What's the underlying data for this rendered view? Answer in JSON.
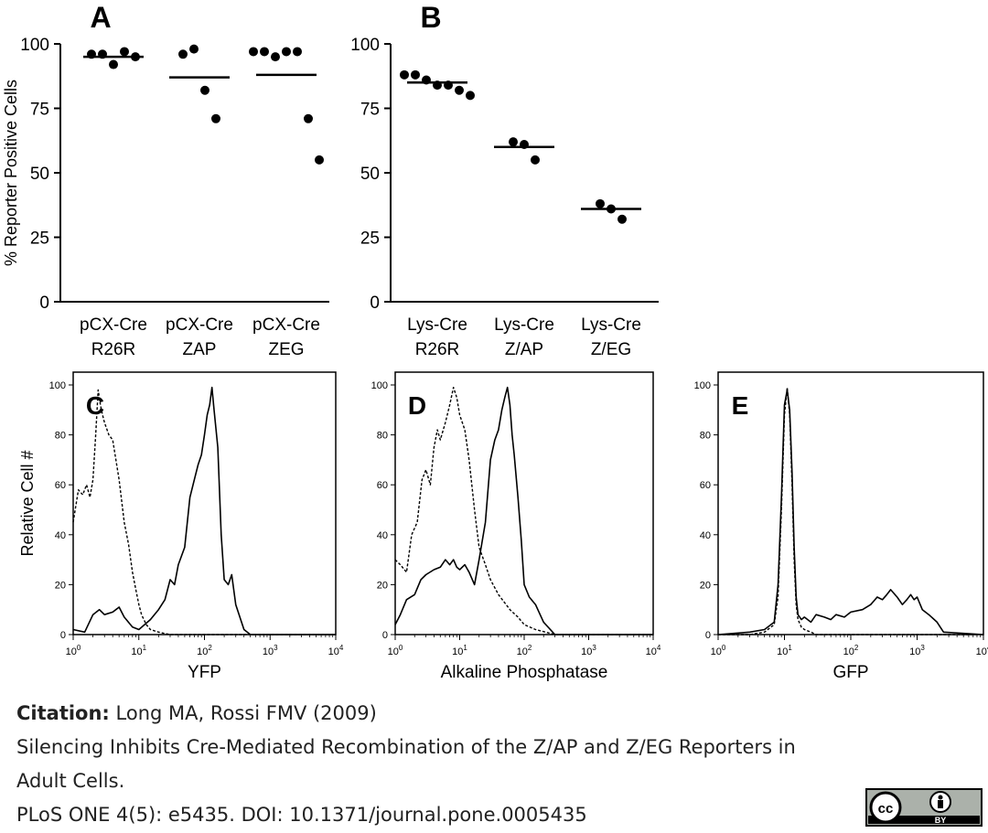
{
  "chart_data": [
    {
      "panel": "A",
      "type": "scatter",
      "ylabel": "% Reporter Positive Cells",
      "ylim": [
        0,
        100
      ],
      "yticks": [
        0,
        25,
        50,
        75,
        100
      ],
      "groups": [
        {
          "label": [
            "pCX-Cre",
            "R26R"
          ],
          "points": [
            96,
            96,
            92,
            97,
            95
          ],
          "median": 95
        },
        {
          "label": [
            "pCX-Cre",
            "ZAP"
          ],
          "points": [
            96,
            98,
            82,
            71
          ],
          "median": 87
        },
        {
          "label": [
            "pCX-Cre",
            "ZEG"
          ],
          "points": [
            97,
            97,
            95,
            97,
            97,
            71,
            55
          ],
          "median": 88
        }
      ]
    },
    {
      "panel": "B",
      "type": "scatter",
      "ylim": [
        0,
        100
      ],
      "yticks": [
        0,
        25,
        50,
        75,
        100
      ],
      "groups": [
        {
          "label": [
            "Lys-Cre",
            "R26R"
          ],
          "points": [
            88,
            88,
            86,
            84,
            84,
            82,
            80
          ],
          "median": 85
        },
        {
          "label": [
            "Lys-Cre",
            "Z/AP"
          ],
          "points": [
            62,
            61,
            55
          ],
          "median": 60
        },
        {
          "label": [
            "Lys-Cre",
            "Z/EG"
          ],
          "points": [
            38,
            36,
            32
          ],
          "median": 36
        }
      ]
    },
    {
      "panel": "C",
      "type": "line",
      "xlabel": "YFP",
      "ylabel": "Relative Cell #",
      "xscale": "log",
      "xlim": [
        1,
        10000
      ],
      "ylim": [
        0,
        100
      ],
      "yticks": [
        0,
        20,
        40,
        60,
        80,
        100
      ],
      "series": [
        {
          "name": "dotted",
          "style": "dashed",
          "x": [
            1,
            1.2,
            1.4,
            1.6,
            1.8,
            2.0,
            2.2,
            2.4,
            2.6,
            2.8,
            3.0,
            3.5,
            4,
            5,
            6,
            7,
            8,
            9,
            10,
            11,
            13,
            15,
            20,
            30,
            60,
            10000
          ],
          "y": [
            45,
            58,
            56,
            60,
            55,
            62,
            80,
            98,
            92,
            88,
            85,
            80,
            78,
            62,
            45,
            36,
            25,
            18,
            12,
            8,
            4,
            2,
            1,
            0,
            0,
            0
          ]
        },
        {
          "name": "solid",
          "style": "solid",
          "x": [
            1,
            1.5,
            2,
            2.5,
            3,
            4,
            5,
            6,
            8,
            10,
            15,
            20,
            25,
            30,
            35,
            40,
            50,
            60,
            70,
            80,
            90,
            100,
            110,
            120,
            130,
            140,
            160,
            180,
            200,
            230,
            260,
            300,
            400,
            500,
            10000
          ],
          "y": [
            2,
            1,
            8,
            10,
            8,
            9,
            11,
            7,
            3,
            2,
            6,
            10,
            14,
            22,
            20,
            28,
            35,
            55,
            62,
            68,
            72,
            80,
            88,
            92,
            99,
            90,
            75,
            40,
            22,
            20,
            24,
            12,
            2,
            0,
            0
          ]
        }
      ]
    },
    {
      "panel": "D",
      "type": "line",
      "xlabel": "Alkaline Phosphatase",
      "xscale": "log",
      "xlim": [
        1,
        10000
      ],
      "ylim": [
        0,
        100
      ],
      "yticks": [
        0,
        20,
        40,
        60,
        80,
        100
      ],
      "series": [
        {
          "name": "dotted",
          "style": "dashed",
          "x": [
            1,
            1.2,
            1.5,
            1.8,
            2.2,
            2.6,
            3,
            3.5,
            4,
            4.5,
            5,
            6,
            7,
            8,
            9,
            10,
            12,
            14,
            17,
            20,
            25,
            30,
            40,
            60,
            80,
            100,
            150,
            300,
            10000
          ],
          "y": [
            30,
            28,
            25,
            40,
            45,
            62,
            66,
            60,
            75,
            82,
            78,
            85,
            92,
            99,
            95,
            88,
            82,
            70,
            50,
            35,
            28,
            22,
            16,
            10,
            7,
            4,
            2,
            0,
            0
          ]
        },
        {
          "name": "solid",
          "style": "solid",
          "x": [
            1,
            1.2,
            1.5,
            2,
            2.5,
            3,
            4,
            5,
            6,
            7,
            8,
            9,
            10,
            12,
            14,
            17,
            20,
            25,
            30,
            35,
            40,
            45,
            50,
            55,
            60,
            65,
            70,
            80,
            90,
            100,
            120,
            150,
            200,
            300,
            10000
          ],
          "y": [
            4,
            8,
            14,
            16,
            22,
            24,
            26,
            27,
            30,
            28,
            30,
            27,
            26,
            28,
            25,
            20,
            30,
            45,
            70,
            78,
            82,
            90,
            95,
            99,
            92,
            80,
            72,
            55,
            38,
            20,
            15,
            12,
            5,
            0,
            0
          ]
        }
      ]
    },
    {
      "panel": "E",
      "type": "line",
      "xlabel": "GFP",
      "xscale": "log",
      "xlim": [
        1,
        10000
      ],
      "ylim": [
        0,
        100
      ],
      "yticks": [
        0,
        20,
        40,
        60,
        80,
        100
      ],
      "series": [
        {
          "name": "dotted",
          "style": "dashed",
          "x": [
            1,
            3,
            5,
            7,
            8,
            9,
            10,
            11,
            12,
            13,
            14,
            15,
            16,
            18,
            20,
            25,
            30,
            40,
            10000
          ],
          "y": [
            0,
            0,
            1,
            4,
            15,
            50,
            88,
            99,
            88,
            60,
            30,
            12,
            6,
            3,
            2,
            1,
            0,
            0,
            0
          ]
        },
        {
          "name": "solid",
          "style": "solid",
          "x": [
            1,
            3,
            5,
            7,
            8,
            9,
            10,
            11,
            12,
            13,
            14,
            15,
            16,
            18,
            20,
            25,
            30,
            40,
            50,
            60,
            80,
            100,
            150,
            200,
            250,
            300,
            350,
            400,
            500,
            600,
            700,
            800,
            900,
            1000,
            1200,
            1500,
            2000,
            2500,
            10000
          ],
          "y": [
            0,
            1,
            2,
            5,
            20,
            55,
            92,
            98,
            90,
            65,
            35,
            15,
            8,
            6,
            7,
            5,
            8,
            7,
            6,
            8,
            7,
            9,
            10,
            12,
            15,
            14,
            16,
            18,
            15,
            12,
            14,
            16,
            14,
            15,
            10,
            8,
            5,
            1,
            0
          ]
        }
      ]
    }
  ],
  "citation": {
    "label": "Citation:",
    "authors": "Long MA, Rossi FMV (2009)",
    "title_line1": "Silencing Inhibits Cre-Mediated Recombination of the Z/AP and Z/EG Reporters in",
    "title_line2": "Adult Cells.",
    "journal": "PLoS ONE 4(5): e5435. DOI: 10.1371/journal.pone.0005435"
  },
  "license": {
    "cc": "cc",
    "by": "BY"
  }
}
